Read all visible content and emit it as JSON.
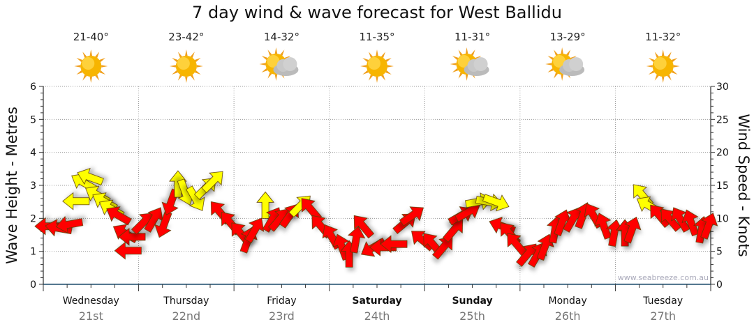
{
  "chart_data": {
    "type": "scatter",
    "title": "7 day wind & wave forecast for West Ballidu",
    "ylabel_left": "Wave Height - Metres",
    "ylabel_right": "Wind Speed - Knots",
    "ylim_left": [
      0,
      6
    ],
    "ylim_right": [
      0,
      30
    ],
    "yticks_left": [
      "0",
      "1",
      "2",
      "3",
      "4",
      "5",
      "6"
    ],
    "yticks_right": [
      "0",
      "5",
      "10",
      "15",
      "20",
      "25",
      "30"
    ],
    "grid": true,
    "watermark": "www.seabreeze.com.au",
    "days": [
      {
        "name": "Wednesday",
        "date": "21st",
        "temp": "21-40°",
        "weather": "sunny",
        "bold": false
      },
      {
        "name": "Thursday",
        "date": "22nd",
        "temp": "23-42°",
        "weather": "sunny",
        "bold": false
      },
      {
        "name": "Friday",
        "date": "23rd",
        "temp": "14-32°",
        "weather": "partly-cloudy",
        "bold": false
      },
      {
        "name": "Saturday",
        "date": "24th",
        "temp": "11-35°",
        "weather": "sunny",
        "bold": true
      },
      {
        "name": "Sunday",
        "date": "25th",
        "temp": "11-31°",
        "weather": "partly-cloudy",
        "bold": true
      },
      {
        "name": "Monday",
        "date": "26th",
        "temp": "13-29°",
        "weather": "partly-cloudy",
        "bold": false
      },
      {
        "name": "Tuesday",
        "date": "27th",
        "temp": "11-32°",
        "weather": "sunny",
        "bold": false
      }
    ],
    "colors": {
      "calm": "#ff0000",
      "strong": "#ffff00",
      "axis": "#1a4a6a"
    },
    "wind_series_note": "each point: [hours from start, knots, arrow direction deg (0=up, clockwise), strong flag]",
    "wind": [
      [
        1.4,
        8.8,
        270,
        0
      ],
      [
        4.0,
        8.5,
        280,
        0
      ],
      [
        6.7,
        9.1,
        260,
        0
      ],
      [
        8.4,
        12.6,
        270,
        1
      ],
      [
        10.2,
        15.4,
        300,
        1
      ],
      [
        11.9,
        16.2,
        290,
        1
      ],
      [
        13.7,
        13.5,
        300,
        1
      ],
      [
        15.5,
        12.5,
        300,
        1
      ],
      [
        17.2,
        11.4,
        300,
        1
      ],
      [
        19.0,
        10.4,
        300,
        0
      ],
      [
        20.7,
        7.7,
        300,
        0
      ],
      [
        22.5,
        7.2,
        270,
        0
      ],
      [
        21.5,
        5.1,
        270,
        0
      ],
      [
        25.1,
        9.3,
        45,
        0
      ],
      [
        27.8,
        9.8,
        30,
        0
      ],
      [
        30.4,
        9.1,
        200,
        0
      ],
      [
        32.2,
        12.5,
        200,
        0
      ],
      [
        33.9,
        15.1,
        0,
        1
      ],
      [
        35.7,
        14.0,
        160,
        1
      ],
      [
        38.3,
        13.0,
        150,
        1
      ],
      [
        40.9,
        14.6,
        45,
        1
      ],
      [
        42.7,
        15.6,
        45,
        1
      ],
      [
        44.5,
        10.9,
        320,
        0
      ],
      [
        47.1,
        9.3,
        320,
        0
      ],
      [
        49.7,
        7.7,
        320,
        0
      ],
      [
        51.5,
        6.7,
        20,
        0
      ],
      [
        53.2,
        8.2,
        30,
        0
      ],
      [
        55.9,
        11.9,
        0,
        1
      ],
      [
        57.6,
        9.8,
        30,
        0
      ],
      [
        59.4,
        9.8,
        40,
        0
      ],
      [
        62.0,
        10.4,
        35,
        0
      ],
      [
        64.7,
        11.9,
        45,
        1
      ],
      [
        67.3,
        11.4,
        320,
        0
      ],
      [
        69.9,
        8.8,
        320,
        0
      ],
      [
        72.6,
        7.2,
        330,
        0
      ],
      [
        75.2,
        5.6,
        340,
        0
      ],
      [
        77.0,
        4.5,
        0,
        0
      ],
      [
        78.7,
        6.7,
        10,
        0
      ],
      [
        80.5,
        8.8,
        320,
        0
      ],
      [
        83.1,
        5.6,
        240,
        0
      ],
      [
        85.7,
        5.6,
        270,
        0
      ],
      [
        88.4,
        6.1,
        270,
        0
      ],
      [
        91.0,
        9.3,
        50,
        0
      ],
      [
        92.8,
        10.4,
        55,
        0
      ],
      [
        95.4,
        6.7,
        310,
        0
      ],
      [
        98.0,
        6.1,
        320,
        0
      ],
      [
        100.7,
        5.6,
        40,
        0
      ],
      [
        103.3,
        8.2,
        40,
        0
      ],
      [
        105.1,
        10.4,
        60,
        0
      ],
      [
        106.8,
        10.9,
        60,
        0
      ],
      [
        109.5,
        12.5,
        80,
        1
      ],
      [
        112.1,
        12.5,
        100,
        1
      ],
      [
        113.9,
        12.5,
        110,
        1
      ],
      [
        115.6,
        8.8,
        290,
        0
      ],
      [
        117.4,
        7.7,
        320,
        0
      ],
      [
        119.1,
        6.1,
        320,
        0
      ],
      [
        121.8,
        4.5,
        40,
        0
      ],
      [
        124.4,
        4.5,
        30,
        0
      ],
      [
        126.2,
        5.6,
        20,
        0
      ],
      [
        128.8,
        8.2,
        10,
        0
      ],
      [
        130.5,
        9.3,
        20,
        0
      ],
      [
        133.2,
        9.8,
        30,
        0
      ],
      [
        135.8,
        10.4,
        20,
        0
      ],
      [
        138.5,
        10.4,
        330,
        0
      ],
      [
        141.1,
        8.8,
        340,
        0
      ],
      [
        143.7,
        7.7,
        10,
        0
      ],
      [
        146.4,
        7.7,
        0,
        0
      ],
      [
        148.1,
        8.2,
        20,
        0
      ],
      [
        150.8,
        13.5,
        320,
        1
      ],
      [
        152.5,
        11.9,
        300,
        1
      ],
      [
        155.1,
        10.4,
        320,
        0
      ],
      [
        157.8,
        9.8,
        320,
        0
      ],
      [
        160.4,
        9.8,
        330,
        0
      ],
      [
        163.1,
        9.3,
        340,
        0
      ],
      [
        165.7,
        8.2,
        10,
        0
      ],
      [
        167.4,
        8.8,
        20,
        0
      ]
    ]
  }
}
